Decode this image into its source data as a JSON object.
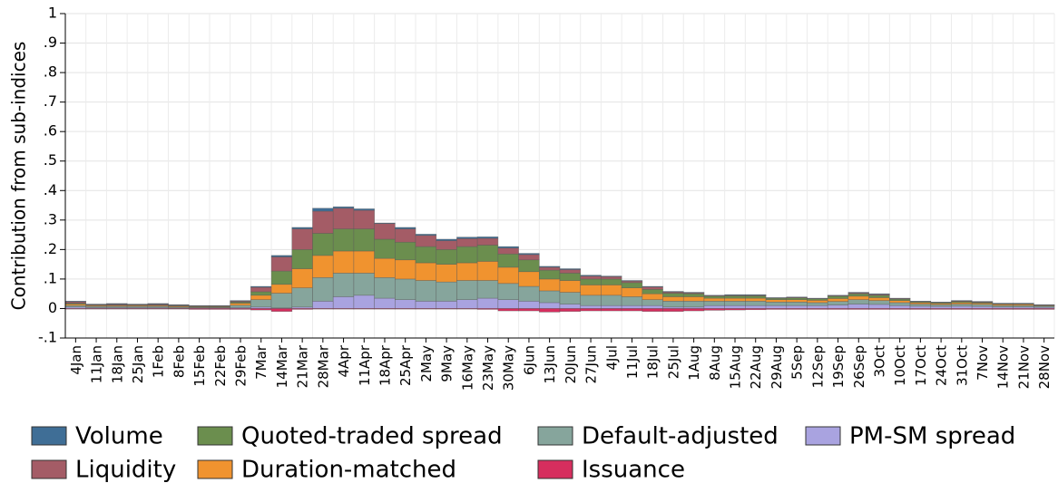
{
  "chart_data": {
    "type": "stacked_bar",
    "y_label": "Contribution from sub-indices",
    "categories": [
      "4Jan",
      "11Jan",
      "18Jan",
      "25Jan",
      "1Feb",
      "8Feb",
      "15Feb",
      "22Feb",
      "29Feb",
      "7Mar",
      "14Mar",
      "21Mar",
      "28Mar",
      "4Apr",
      "11Apr",
      "18Apr",
      "25Apr",
      "2May",
      "9May",
      "16May",
      "23May",
      "30May",
      "6Jun",
      "13Jun",
      "20Jun",
      "27Jun",
      "4Jul",
      "11Jul",
      "18Jul",
      "25Jul",
      "1Aug",
      "8Aug",
      "15Aug",
      "22Aug",
      "29Aug",
      "5Sep",
      "12Sep",
      "19Sep",
      "26Sep",
      "3Oct",
      "10Oct",
      "17Oct",
      "24Oct",
      "31Oct",
      "7Nov",
      "14Nov",
      "21Nov",
      "28Nov"
    ],
    "series": [
      {
        "name": "Volume",
        "color": "#3f6e96",
        "values": [
          0.002,
          0.001,
          0.002,
          0.001,
          0.002,
          0.001,
          0.001,
          0.001,
          0.002,
          0.003,
          0.005,
          0.005,
          0.01,
          0.005,
          0.005,
          0.002,
          0.005,
          0.004,
          0.005,
          0.005,
          0.005,
          0.005,
          0.004,
          0.003,
          0.003,
          0.003,
          0.002,
          0.002,
          0.002,
          0.002,
          0.002,
          0.001,
          0.002,
          0.002,
          0.001,
          0.001,
          0.001,
          0.001,
          0.002,
          0.002,
          0.001,
          0.001,
          0.001,
          0.001,
          0.001,
          0.001,
          0.001,
          0.001
        ]
      },
      {
        "name": "Liquidity",
        "color": "#a45c66",
        "values": [
          0.005,
          0.002,
          0.003,
          0.002,
          0.003,
          0.002,
          0.001,
          0.001,
          0.003,
          0.015,
          0.048,
          0.07,
          0.075,
          0.07,
          0.063,
          0.053,
          0.045,
          0.038,
          0.03,
          0.027,
          0.023,
          0.02,
          0.018,
          0.01,
          0.012,
          0.01,
          0.008,
          0.005,
          0.008,
          0.004,
          0.003,
          0.002,
          0.002,
          0.002,
          0.001,
          0.002,
          0.001,
          0.002,
          0.003,
          0.003,
          0.002,
          0.001,
          0.001,
          0.002,
          0.002,
          0.001,
          0.001,
          0.001
        ]
      },
      {
        "name": "Quoted-traded spread",
        "color": "#6b8e4e",
        "values": [
          0.003,
          0.002,
          0.002,
          0.002,
          0.002,
          0.002,
          0.002,
          0.002,
          0.004,
          0.012,
          0.045,
          0.065,
          0.075,
          0.075,
          0.075,
          0.065,
          0.06,
          0.055,
          0.05,
          0.055,
          0.055,
          0.045,
          0.04,
          0.03,
          0.025,
          0.02,
          0.02,
          0.018,
          0.015,
          0.012,
          0.01,
          0.007,
          0.008,
          0.008,
          0.005,
          0.006,
          0.005,
          0.008,
          0.008,
          0.008,
          0.005,
          0.003,
          0.003,
          0.004,
          0.003,
          0.002,
          0.002,
          0.001
        ]
      },
      {
        "name": "Duration-matched",
        "color": "#f0932f",
        "values": [
          0.005,
          0.003,
          0.003,
          0.003,
          0.003,
          0.003,
          0.002,
          0.002,
          0.007,
          0.015,
          0.03,
          0.065,
          0.075,
          0.075,
          0.075,
          0.065,
          0.065,
          0.06,
          0.06,
          0.06,
          0.065,
          0.055,
          0.05,
          0.04,
          0.04,
          0.035,
          0.035,
          0.03,
          0.02,
          0.015,
          0.015,
          0.01,
          0.01,
          0.01,
          0.008,
          0.008,
          0.008,
          0.01,
          0.012,
          0.01,
          0.007,
          0.005,
          0.004,
          0.005,
          0.004,
          0.004,
          0.004,
          0.002
        ]
      },
      {
        "name": "Default-adjusted",
        "color": "#86a59c",
        "values": [
          0.005,
          0.004,
          0.004,
          0.004,
          0.004,
          0.003,
          0.002,
          0.002,
          0.008,
          0.025,
          0.05,
          0.065,
          0.08,
          0.08,
          0.075,
          0.07,
          0.07,
          0.07,
          0.065,
          0.065,
          0.06,
          0.055,
          0.05,
          0.04,
          0.04,
          0.035,
          0.035,
          0.03,
          0.02,
          0.02,
          0.02,
          0.015,
          0.015,
          0.015,
          0.012,
          0.012,
          0.01,
          0.012,
          0.015,
          0.013,
          0.01,
          0.007,
          0.006,
          0.007,
          0.007,
          0.005,
          0.005,
          0.004
        ]
      },
      {
        "name": "Issuance",
        "color": "#d62e5e",
        "values": [
          -0.002,
          -0.002,
          -0.002,
          -0.002,
          -0.002,
          -0.002,
          -0.003,
          -0.003,
          -0.003,
          -0.005,
          -0.01,
          -0.003,
          -0.002,
          -0.002,
          -0.002,
          -0.002,
          -0.002,
          -0.002,
          -0.002,
          -0.002,
          -0.003,
          -0.008,
          -0.008,
          -0.012,
          -0.01,
          -0.008,
          -0.008,
          -0.008,
          -0.01,
          -0.01,
          -0.008,
          -0.006,
          -0.005,
          -0.004,
          -0.003,
          -0.003,
          -0.003,
          -0.003,
          -0.003,
          -0.003,
          -0.003,
          -0.003,
          -0.003,
          -0.003,
          -0.003,
          -0.003,
          -0.003,
          -0.003
        ]
      },
      {
        "name": "PM-SM spread",
        "color": "#a9a3e0",
        "values": [
          0.005,
          0.003,
          0.003,
          0.003,
          0.003,
          0.002,
          0.002,
          0.002,
          0.003,
          0.005,
          0.002,
          0.005,
          0.025,
          0.04,
          0.045,
          0.035,
          0.03,
          0.025,
          0.025,
          0.03,
          0.035,
          0.03,
          0.025,
          0.02,
          0.015,
          0.01,
          0.01,
          0.01,
          0.01,
          0.005,
          0.005,
          0.01,
          0.01,
          0.01,
          0.01,
          0.01,
          0.01,
          0.012,
          0.015,
          0.014,
          0.01,
          0.008,
          0.007,
          0.008,
          0.007,
          0.005,
          0.005,
          0.004
        ]
      }
    ],
    "ylim": [
      -0.1,
      1
    ],
    "yticks": [
      {
        "value": -0.1,
        "label": "-.1"
      },
      0,
      {
        "value": 0.1,
        "label": ".1"
      },
      {
        "value": 0.2,
        "label": ".2"
      },
      {
        "value": 0.3,
        "label": ".3"
      },
      {
        "value": 0.4,
        "label": ".4"
      },
      {
        "value": 0.5,
        "label": ".5"
      },
      {
        "value": 0.6,
        "label": ".6"
      },
      {
        "value": 0.7,
        "label": ".7"
      },
      {
        "value": 0.8,
        "label": ".8"
      },
      {
        "value": 0.9,
        "label": ".9"
      },
      1
    ],
    "grid": true
  }
}
